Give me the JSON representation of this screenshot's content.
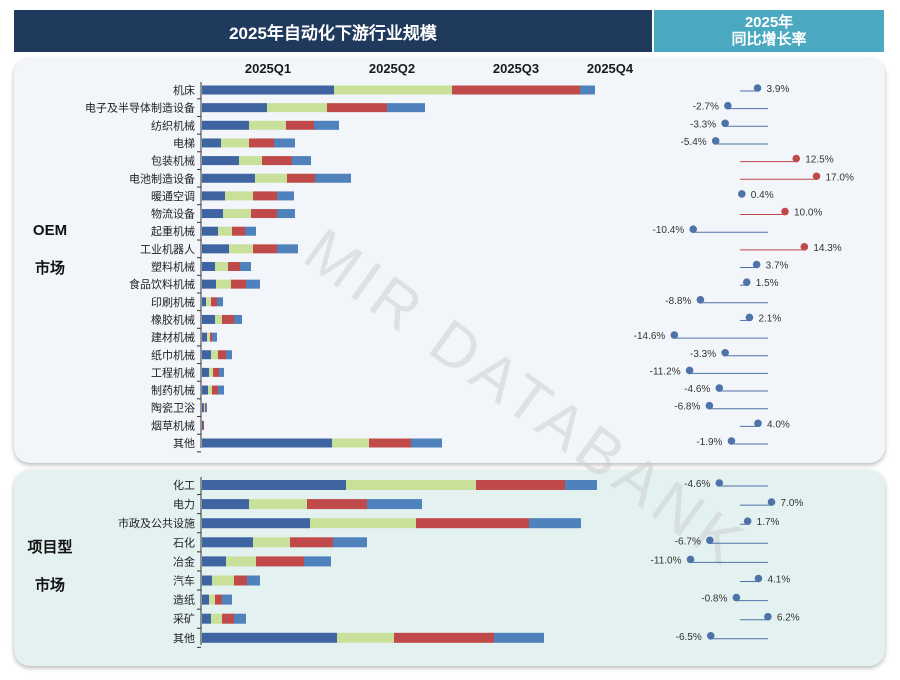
{
  "header": {
    "title": "2025年自动化下游行业规模",
    "growth_title_line1": "2025年",
    "growth_title_line2": "同比增长率"
  },
  "watermark": "MIR DATABANK",
  "colors": {
    "q1": "#3f64a2",
    "q2": "#c9e09b",
    "q3": "#bf4a49",
    "q4": "#4f81bd",
    "dot_pos": "#4e73a8",
    "dot_high": "#c04a4a",
    "line": "#4e73a8",
    "axis": "#333333"
  },
  "chart_data": [
    {
      "type": "bar",
      "stacked": true,
      "orientation": "horizontal",
      "title": "2025年自动化下游行业规模",
      "section_label_line1": "OEM",
      "section_label_line2": "市场",
      "legend": [
        "2025Q1",
        "2025Q2",
        "2025Q3",
        "2025Q4"
      ],
      "categories": [
        "机床",
        "电子及半导体制造设备",
        "纺织机械",
        "电梯",
        "包装机械",
        "电池制造设备",
        "暖通空调",
        "物流设备",
        "起重机械",
        "工业机器人",
        "塑料机械",
        "食品饮料机械",
        "印刷机械",
        "橡胶机械",
        "建材机械",
        "纸巾机械",
        "工程机械",
        "制药机械",
        "陶瓷卫浴",
        "烟草机械",
        "其他"
      ],
      "series": [
        {
          "name": "2025Q1",
          "values": [
            132,
            65,
            47,
            19,
            37,
            53,
            23,
            21,
            16,
            27,
            13,
            14,
            4,
            13,
            5,
            9,
            7,
            6,
            2,
            1,
            130
          ]
        },
        {
          "name": "2025Q2",
          "values": [
            118,
            60,
            37,
            28,
            23,
            32,
            28,
            28,
            14,
            24,
            13,
            15,
            5,
            7,
            3,
            7,
            4,
            4,
            1,
            0,
            37
          ]
        },
        {
          "name": "2025Q3",
          "values": [
            128,
            60,
            28,
            25,
            30,
            28,
            24,
            26,
            13,
            24,
            12,
            15,
            6,
            12,
            2,
            8,
            6,
            6,
            1,
            1,
            42
          ]
        },
        {
          "name": "2025Q4",
          "values": [
            15,
            38,
            25,
            21,
            19,
            36,
            17,
            18,
            11,
            21,
            11,
            14,
            6,
            8,
            5,
            6,
            5,
            6,
            1,
            0,
            31
          ]
        }
      ],
      "growth_rate": {
        "values": [
          3.9,
          -2.7,
          -3.3,
          -5.4,
          12.5,
          17.0,
          0.4,
          10.0,
          -10.4,
          14.3,
          3.7,
          1.5,
          -8.8,
          2.1,
          -14.6,
          -3.3,
          -11.2,
          -4.6,
          -6.8,
          4.0,
          -1.9
        ],
        "labels": [
          "3.9%",
          "-2.7%",
          "-3.3%",
          "-5.4%",
          "12.5%",
          "17.0%",
          "0.4%",
          "10.0%",
          "-10.4%",
          "14.3%",
          "3.7%",
          "1.5%",
          "-8.8%",
          "2.1%",
          "-14.6%",
          "-3.3%",
          "-11.2%",
          "-4.6%",
          "-6.8%",
          "4.0%",
          "-1.9%"
        ],
        "highlight": [
          false,
          false,
          false,
          false,
          true,
          true,
          false,
          true,
          false,
          true,
          false,
          false,
          false,
          false,
          false,
          false,
          false,
          false,
          false,
          false,
          false
        ]
      }
    },
    {
      "type": "bar",
      "stacked": true,
      "orientation": "horizontal",
      "section_label_line1": "项目型",
      "section_label_line2": "市场",
      "legend": [
        "2025Q1",
        "2025Q2",
        "2025Q3",
        "2025Q4"
      ],
      "categories": [
        "化工",
        "电力",
        "市政及公共设施",
        "石化",
        "冶金",
        "汽车",
        "造纸",
        "采矿",
        "其他"
      ],
      "series": [
        {
          "name": "2025Q1",
          "values": [
            144,
            47,
            108,
            51,
            24,
            10,
            7,
            9,
            135
          ]
        },
        {
          "name": "2025Q2",
          "values": [
            130,
            58,
            106,
            37,
            30,
            22,
            6,
            11,
            57
          ]
        },
        {
          "name": "2025Q3",
          "values": [
            89,
            60,
            113,
            43,
            48,
            13,
            7,
            12,
            100
          ]
        },
        {
          "name": "2025Q4",
          "values": [
            32,
            55,
            52,
            34,
            27,
            13,
            10,
            12,
            50
          ]
        }
      ],
      "growth_rate": {
        "values": [
          -4.6,
          7.0,
          1.7,
          -6.7,
          -11.0,
          4.1,
          -0.8,
          6.2,
          -6.5
        ],
        "labels": [
          "-4.6%",
          "7.0%",
          "1.7%",
          "-6.7%",
          "-11.0%",
          "4.1%",
          "-0.8%",
          "6.2%",
          "-6.5%"
        ],
        "highlight": [
          false,
          false,
          false,
          false,
          false,
          false,
          false,
          false,
          false
        ]
      }
    }
  ]
}
